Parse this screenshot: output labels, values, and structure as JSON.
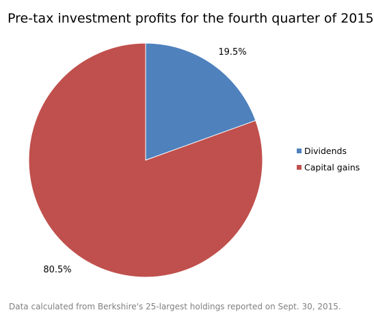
{
  "chart_data": {
    "type": "pie",
    "title": "Pre-tax investment profits for the fourth quarter of 2015",
    "slices": [
      {
        "name": "Dividends",
        "value": 19.5,
        "label": "19.5%",
        "color": "#4f81bd"
      },
      {
        "name": "Capital gains",
        "value": 80.5,
        "label": "80.5%",
        "color": "#c0504d"
      }
    ],
    "legend": {
      "placement": "right"
    },
    "footnote": "Data calculated  from Berkshire's  25-largest holdings  reported  on Sept. 30, 2015."
  }
}
